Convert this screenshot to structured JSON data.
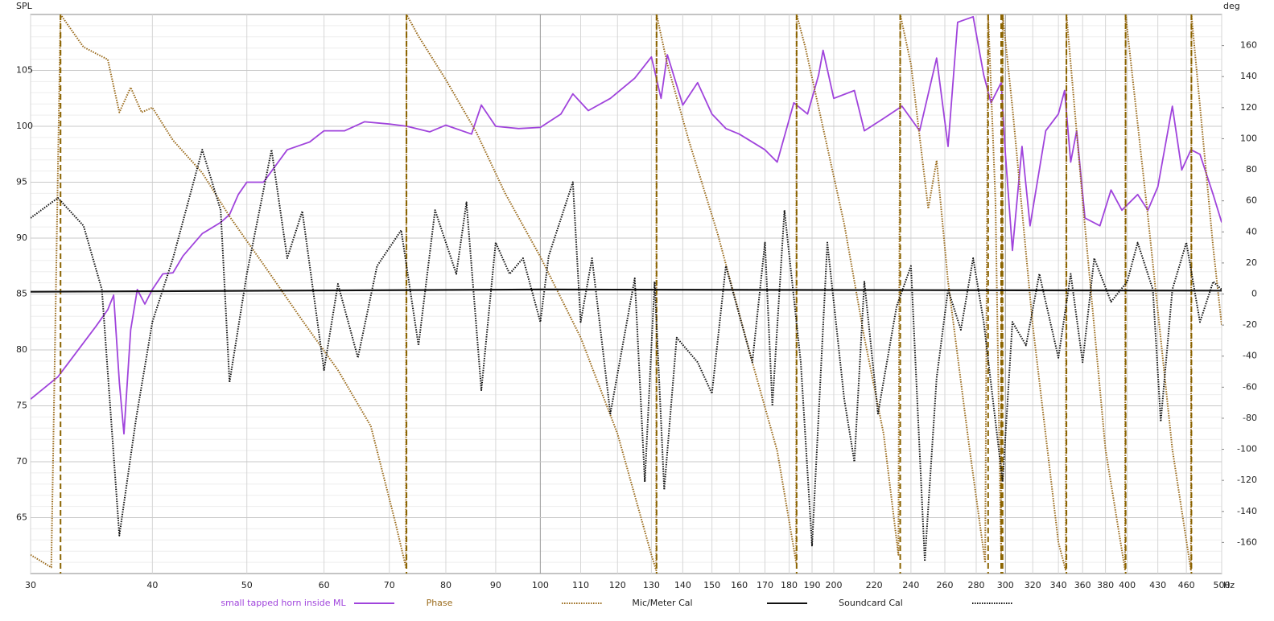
{
  "chart_data": {
    "type": "line",
    "y_label": "SPL",
    "y2_label": "deg",
    "x_unit": "Hz",
    "log_x": true,
    "grid": true,
    "xlim": [
      30,
      500
    ],
    "xticks": [
      30,
      40,
      50,
      60,
      70,
      80,
      90,
      100,
      110,
      120,
      130,
      140,
      150,
      160,
      170,
      180,
      190,
      200,
      220,
      240,
      260,
      280,
      300,
      320,
      340,
      360,
      380,
      400,
      430,
      460,
      500
    ],
    "ylim": [
      60,
      110
    ],
    "yticks": [
      65,
      70,
      75,
      80,
      85,
      90,
      95,
      100,
      105
    ],
    "y2lim": [
      -180,
      180
    ],
    "y2ticks": [
      -160,
      -140,
      -120,
      -100,
      -80,
      -60,
      -40,
      -20,
      0,
      20,
      40,
      60,
      80,
      100,
      120,
      140,
      160
    ],
    "legend": "bottom",
    "series": [
      {
        "name": "small tapped horn inside ML",
        "color": "#a044dc",
        "style": "solid",
        "x": [
          30,
          32,
          35,
          36,
          36.5,
          37,
          37.4,
          38,
          38.6,
          39.3,
          40,
          41,
          42,
          43,
          45,
          47,
          48,
          49,
          50,
          52,
          55,
          58,
          60,
          63,
          66,
          70,
          73,
          77,
          80,
          85,
          87,
          90,
          95,
          100,
          105,
          108,
          112,
          118,
          125,
          130,
          133,
          135,
          140,
          145,
          150,
          155,
          160,
          170,
          175,
          182,
          188,
          193,
          195,
          200,
          210,
          215,
          225,
          235,
          245,
          255,
          262,
          268,
          278,
          285,
          290,
          297,
          300,
          305,
          312,
          318,
          330,
          340,
          345,
          350,
          355,
          362,
          375,
          385,
          395,
          410,
          420,
          430,
          445,
          455,
          465,
          475,
          490,
          500
        ],
        "values": [
          75.6,
          77.6,
          82.1,
          83.6,
          84.9,
          77.1,
          72.5,
          81.8,
          85.4,
          84.1,
          85.4,
          86.8,
          86.9,
          88.4,
          90.4,
          91.4,
          92.1,
          93.9,
          95.0,
          95.0,
          97.9,
          98.6,
          99.6,
          99.6,
          100.4,
          100.2,
          100.0,
          99.5,
          100.1,
          99.3,
          101.9,
          100.0,
          99.8,
          99.9,
          101.1,
          102.9,
          101.4,
          102.5,
          104.3,
          106.2,
          102.5,
          106.4,
          101.9,
          103.9,
          101.1,
          99.8,
          99.3,
          97.9,
          96.8,
          102.1,
          101.1,
          104.6,
          106.8,
          102.5,
          103.2,
          99.6,
          100.7,
          101.8,
          99.6,
          106.1,
          98.2,
          109.3,
          109.8,
          104.6,
          102.1,
          103.9,
          97.5,
          88.9,
          98.2,
          91.1,
          99.6,
          101.1,
          103.2,
          96.8,
          99.6,
          91.8,
          91.1,
          94.3,
          92.5,
          93.9,
          92.5,
          94.6,
          101.8,
          96.1,
          97.9,
          97.5,
          93.9,
          91.4
        ]
      },
      {
        "name": "Phase",
        "color": "#9a6a1a",
        "style": "dotted",
        "axis": "y2",
        "x": [
          30,
          31.5,
          32.2,
          34,
          36,
          37,
          38,
          39,
          40,
          42,
          45,
          48,
          52,
          57,
          62,
          67,
          71,
          72.8,
          72.9,
          75,
          80,
          86,
          92,
          100,
          110,
          120,
          130,
          131.5,
          131.6,
          135,
          142,
          152,
          165,
          175,
          183,
          183.2,
          187,
          195,
          205,
          215,
          225,
          233,
          234,
          240,
          250,
          255,
          262,
          275,
          286,
          288,
          293,
          297,
          298,
          305,
          320,
          340,
          346,
          346.5,
          360,
          380,
          398,
          398.5,
          420,
          445,
          465,
          465.5,
          490,
          500
        ],
        "values": [
          -168,
          -176,
          180,
          159,
          151,
          117,
          133,
          117,
          120,
          99,
          78,
          50,
          19,
          -17,
          -49,
          -85,
          -147,
          -176,
          180,
          166,
          138,
          104,
          65,
          24,
          -28,
          -90,
          -168,
          -178,
          180,
          148,
          99,
          39,
          -44,
          -101,
          -173,
          180,
          159,
          107,
          45,
          -28,
          -90,
          -168,
          180,
          148,
          55,
          86,
          8,
          -95,
          -173,
          180,
          60,
          -170,
          180,
          120,
          -20,
          -160,
          -178,
          180,
          60,
          -100,
          -178,
          180,
          50,
          -100,
          -178,
          180,
          30,
          -20
        ]
      },
      {
        "name": "Mic/Meter Cal",
        "color": "#111111",
        "style": "solid",
        "x": [
          30,
          100,
          500
        ],
        "values": [
          85.2,
          85.4,
          85.3
        ]
      },
      {
        "name": "Soundcard Cal",
        "color": "#111111",
        "style": "dotted",
        "x": [
          30,
          32,
          34,
          35.5,
          37,
          38.5,
          40,
          42,
          45,
          47,
          48,
          50,
          53,
          55,
          57,
          60,
          62,
          65,
          68,
          72,
          75,
          78,
          82,
          84,
          87,
          90,
          93,
          96,
          100,
          102,
          108,
          110,
          113,
          118,
          125,
          128,
          131,
          134,
          138,
          145,
          150,
          155,
          165,
          170,
          173,
          178,
          185,
          190,
          197,
          205,
          210,
          215,
          222,
          232,
          240,
          248,
          255,
          262,
          270,
          278,
          285,
          298,
          305,
          315,
          325,
          340,
          350,
          360,
          370,
          385,
          400,
          410,
          425,
          433,
          445,
          460,
          475,
          490,
          500
        ],
        "values": [
          91.8,
          93.6,
          91.1,
          85.4,
          63.4,
          73.9,
          82.5,
          88.2,
          97.9,
          92.5,
          77.1,
          86.8,
          97.9,
          88.2,
          92.4,
          78.2,
          85.9,
          79.3,
          87.5,
          90.7,
          80.4,
          92.5,
          86.8,
          93.2,
          76.4,
          89.6,
          86.8,
          88.2,
          82.5,
          88.4,
          95.0,
          82.5,
          88.2,
          74.3,
          86.4,
          68.2,
          86.1,
          67.5,
          81.1,
          78.9,
          76.1,
          87.5,
          78.9,
          89.6,
          75.0,
          92.5,
          78.9,
          62.5,
          89.6,
          75.6,
          70.0,
          86.1,
          74.3,
          83.9,
          87.5,
          61.1,
          77.5,
          85.4,
          81.8,
          88.2,
          82.5,
          68.2,
          82.5,
          80.4,
          86.8,
          79.3,
          86.8,
          78.9,
          88.2,
          84.3,
          86.1,
          89.6,
          85.4,
          73.6,
          85.4,
          89.6,
          82.5,
          86.1,
          85.4
        ]
      }
    ]
  }
}
